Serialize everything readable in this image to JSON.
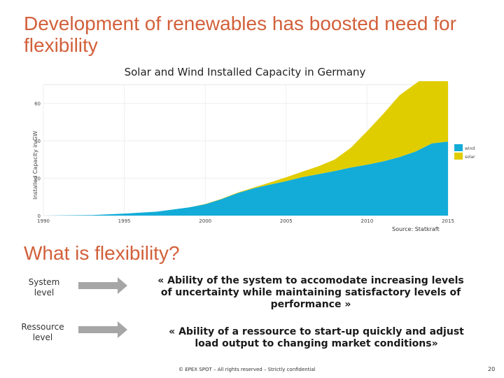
{
  "slide": {
    "title": "Development of renewables has boosted need for flexibility",
    "section_title": "What is flexibility?",
    "source": "Source: Statkraft",
    "footer": "© EPEX SPOT – All rights reserved – Strictly confidential",
    "page_number": "20"
  },
  "definitions": [
    {
      "label": "System level",
      "text": "« Ability of the system to accomodate increasing levels of uncertainty while maintaining satisfactory levels of performance »"
    },
    {
      "label": "Ressource level",
      "text": "« Ability of a ressource to start-up quickly and adjust load output to changing market conditions»"
    }
  ],
  "colors": {
    "accent": "#d2603a",
    "wind": "#13acd8",
    "solar": "#e0cd00",
    "arrow": "#a6a6a6"
  },
  "chart_data": {
    "type": "area",
    "title": "Solar and Wind Installed Capacity in Germany",
    "ylabel": "Installed Capacity in GW",
    "xlabel": "",
    "stacked": true,
    "xlim": [
      1990,
      2015
    ],
    "ylim": [
      0,
      70
    ],
    "x_ticks": [
      "1990",
      "1995",
      "2000",
      "2005",
      "2010",
      "2015"
    ],
    "y_ticks": [
      "0",
      "20",
      "40",
      "60"
    ],
    "grid": true,
    "legend_position": "right",
    "x": [
      1990,
      1993,
      1995,
      1997,
      1999,
      2000,
      2001,
      2002,
      2003,
      2004,
      2005,
      2006,
      2007,
      2008,
      2009,
      2010,
      2011,
      2012,
      2013,
      2014,
      2015
    ],
    "series": [
      {
        "name": "wind",
        "color": "#13acd8",
        "values": [
          0,
          0.3,
          1.1,
          2.1,
          4.4,
          6.1,
          8.8,
          12.0,
          14.6,
          16.6,
          18.4,
          20.6,
          22.2,
          23.9,
          25.7,
          27.2,
          29.0,
          31.3,
          34.3,
          38.6,
          39.6
        ]
      },
      {
        "name": "solar",
        "color": "#e0cd00",
        "values": [
          0,
          0,
          0,
          0,
          0,
          0.1,
          0.2,
          0.3,
          0.4,
          1.1,
          2.1,
          2.9,
          4.2,
          6.1,
          10.6,
          17.9,
          25.4,
          33.0,
          36.3,
          38.2,
          39.7
        ]
      }
    ]
  }
}
